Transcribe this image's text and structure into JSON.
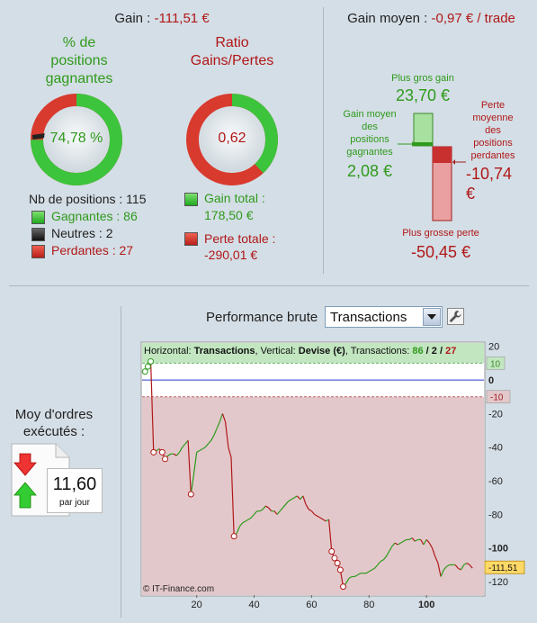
{
  "summary": {
    "gain_label": "Gain : ",
    "gain_value": "-111,51 €",
    "avg_label": "Gain moyen : ",
    "avg_value": "-0,97 € / trade"
  },
  "win_rate": {
    "title_lines": [
      "% de",
      "positions",
      "gagnantes"
    ],
    "value": "74,78 %",
    "fraction": 0.7478
  },
  "ratio": {
    "title_lines": [
      "Ratio",
      "Gains/Pertes"
    ],
    "value": "0,62",
    "fraction": 0.38
  },
  "positions": {
    "count_label": "Nb de positions : 115",
    "winners": "Gagnantes : 86",
    "neutral": "Neutres : 2",
    "losers": "Perdantes : 27"
  },
  "totals": {
    "gain_label": "Gain total :",
    "gain_value": "178,50 €",
    "loss_label": "Perte totale :",
    "loss_value": "-290,01 €"
  },
  "extremes": {
    "max_gain_label": "Plus gros gain",
    "max_gain_value": "23,70 €",
    "avg_gain_lines": [
      "Gain moyen",
      "des",
      "positions",
      "gagnantes"
    ],
    "avg_gain_value": "2,08 €",
    "avg_loss_lines": [
      "Perte",
      "moyenne",
      "des",
      "positions",
      "perdantes"
    ],
    "avg_loss_value": "-10,74 €",
    "max_loss_label": "Plus grosse perte",
    "max_loss_value": "-50,45 €"
  },
  "orders": {
    "label_lines": [
      "Moy d'ordres",
      "exécutés :"
    ],
    "value": "11,60",
    "unit": "par jour"
  },
  "performance": {
    "title": "Performance brute",
    "selected": "Transactions"
  },
  "colors": {
    "green": "#2f9a1c",
    "red": "#b01818",
    "ring_green": "#3cc43c",
    "ring_red": "#d83a2e"
  },
  "chart_data": {
    "type": "line",
    "header": {
      "h_label": "Horizontal: ",
      "h_value": "Transactions",
      "v_label": ", Vertical: ",
      "v_value": "Devise (€)",
      "t_label": ", Transactions: ",
      "wins": "86",
      "slash1": " / ",
      "neutral": "2",
      "slash2": " / ",
      "losses": "27"
    },
    "copyright": "© IT-Finance.com",
    "xlim": [
      1,
      120
    ],
    "ylim": [
      -128,
      22
    ],
    "x_ticks": [
      "20",
      "40",
      "60",
      "80",
      "100"
    ],
    "y_ticks": [
      "20",
      "0",
      "-20",
      "-40",
      "-60",
      "-80",
      "-100",
      "-120"
    ],
    "band_upper": 10,
    "band_lower": -10,
    "band_upper_label": "10",
    "band_lower_label": "-10",
    "last_value": -111.51,
    "last_value_label": "-111,51",
    "points": [
      [
        2,
        5
      ],
      [
        3,
        8
      ],
      [
        4,
        11
      ],
      [
        5,
        -43
      ],
      [
        6,
        -42
      ],
      [
        7,
        -41
      ],
      [
        8,
        -43
      ],
      [
        9,
        -47
      ],
      [
        10,
        -45
      ],
      [
        11,
        -44
      ],
      [
        12,
        -44
      ],
      [
        13,
        -45
      ],
      [
        14,
        -43
      ],
      [
        15,
        -40
      ],
      [
        16,
        -38
      ],
      [
        17,
        -36
      ],
      [
        18,
        -68
      ],
      [
        19,
        -56
      ],
      [
        20,
        -43
      ],
      [
        21,
        -42
      ],
      [
        22,
        -41
      ],
      [
        23,
        -40
      ],
      [
        24,
        -38
      ],
      [
        25,
        -36
      ],
      [
        26,
        -33
      ],
      [
        27,
        -29
      ],
      [
        28,
        -25
      ],
      [
        29,
        -20
      ],
      [
        30,
        -25
      ],
      [
        31,
        -40
      ],
      [
        32,
        -46
      ],
      [
        33,
        -93
      ],
      [
        34,
        -91
      ],
      [
        35,
        -87
      ],
      [
        36,
        -85
      ],
      [
        37,
        -84
      ],
      [
        38,
        -83
      ],
      [
        39,
        -82
      ],
      [
        40,
        -80
      ],
      [
        41,
        -78
      ],
      [
        42,
        -78
      ],
      [
        43,
        -77
      ],
      [
        44,
        -75
      ],
      [
        45,
        -76
      ],
      [
        46,
        -78
      ],
      [
        47,
        -78
      ],
      [
        48,
        -80
      ],
      [
        49,
        -78
      ],
      [
        50,
        -76
      ],
      [
        51,
        -74
      ],
      [
        52,
        -72
      ],
      [
        53,
        -71
      ],
      [
        54,
        -70
      ],
      [
        55,
        -69
      ],
      [
        56,
        -71
      ],
      [
        57,
        -69
      ],
      [
        58,
        -74
      ],
      [
        59,
        -77
      ],
      [
        60,
        -78
      ],
      [
        61,
        -80
      ],
      [
        62,
        -81
      ],
      [
        63,
        -82
      ],
      [
        64,
        -83
      ],
      [
        65,
        -84
      ],
      [
        66,
        -83
      ],
      [
        67,
        -102
      ],
      [
        68,
        -106
      ],
      [
        69,
        -109
      ],
      [
        70,
        -113
      ],
      [
        71,
        -123
      ],
      [
        72,
        -121
      ],
      [
        73,
        -118
      ],
      [
        74,
        -117
      ],
      [
        75,
        -117
      ],
      [
        76,
        -116
      ],
      [
        77,
        -115
      ],
      [
        78,
        -115
      ],
      [
        79,
        -115
      ],
      [
        80,
        -114
      ],
      [
        81,
        -113
      ],
      [
        82,
        -112
      ],
      [
        83,
        -110
      ],
      [
        84,
        -108
      ],
      [
        85,
        -107
      ],
      [
        86,
        -105
      ],
      [
        87,
        -102
      ],
      [
        88,
        -99
      ],
      [
        89,
        -97
      ],
      [
        90,
        -98
      ],
      [
        91,
        -97
      ],
      [
        92,
        -96
      ],
      [
        93,
        -95
      ],
      [
        94,
        -95
      ],
      [
        95,
        -94
      ],
      [
        96,
        -96
      ],
      [
        97,
        -95
      ],
      [
        98,
        -95
      ],
      [
        99,
        -98
      ],
      [
        100,
        -95
      ],
      [
        101,
        -97
      ],
      [
        102,
        -100
      ],
      [
        103,
        -105
      ],
      [
        104,
        -109
      ],
      [
        105,
        -117
      ],
      [
        106,
        -113
      ],
      [
        107,
        -111
      ],
      [
        108,
        -110
      ],
      [
        109,
        -110
      ],
      [
        110,
        -110
      ],
      [
        111,
        -112
      ],
      [
        112,
        -113
      ],
      [
        113,
        -110
      ],
      [
        114,
        -109
      ],
      [
        115,
        -110
      ],
      [
        116,
        -112
      ]
    ],
    "loss_markers": [
      5,
      9,
      18,
      33,
      67,
      68,
      69,
      70,
      71,
      8
    ]
  }
}
